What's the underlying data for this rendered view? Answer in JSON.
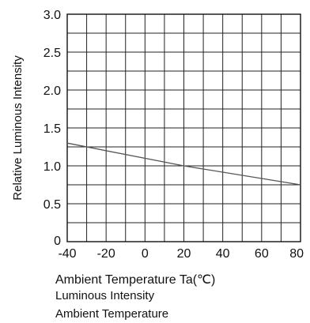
{
  "chart_data": {
    "type": "line",
    "xlabel": "Ambient Temperature Ta(℃)",
    "ylabel": "Relative Luminous Intensity",
    "xlim": [
      -40,
      80
    ],
    "ylim": [
      0,
      3.0
    ],
    "x_ticks": [
      "-40",
      "-20",
      "0",
      "20",
      "40",
      "60",
      "80"
    ],
    "y_ticks": [
      "0",
      "0.5",
      "1.0",
      "1.5",
      "2.0",
      "2.5",
      "3.0"
    ],
    "x_tick_values": [
      -40,
      -20,
      0,
      20,
      40,
      60,
      80
    ],
    "y_tick_values": [
      0,
      0.5,
      1.0,
      1.5,
      2.0,
      2.5,
      3.0
    ],
    "grid": true,
    "x_minor_step": 10,
    "y_minor_step": 0.25,
    "series": [
      {
        "x": [
          -40,
          20,
          80
        ],
        "y": [
          1.3,
          1.0,
          0.75
        ],
        "color": "#555555"
      }
    ]
  },
  "captions": [
    "Luminous Intensity",
    "Ambient Temperature"
  ]
}
